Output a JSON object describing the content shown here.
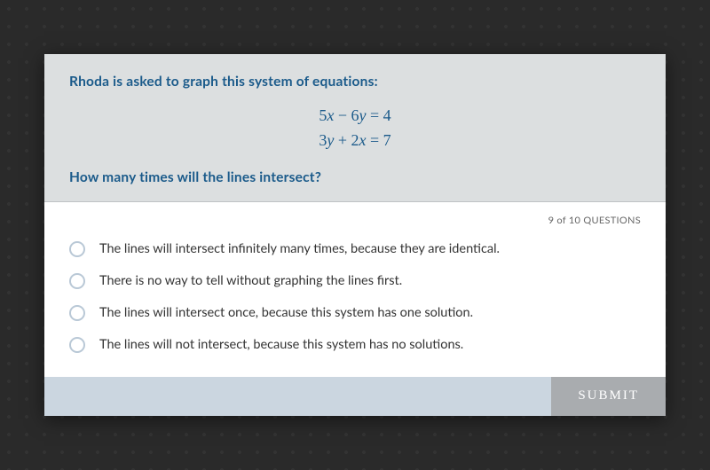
{
  "question": {
    "prompt_line1": "Rhoda is asked to graph this system of equations:",
    "equation1_html": "5<span class='var'>x</span> − 6<span class='var'>y</span> = 4",
    "equation2_html": "3<span class='var'>y</span> + 2<span class='var'>x</span> = 7",
    "prompt_line2": "How many times will the lines intersect?"
  },
  "progress": {
    "text": "9 of 10 QUESTIONS"
  },
  "options": [
    {
      "label": "The lines will intersect infinitely many times, because they are identical."
    },
    {
      "label": "There is no way to tell without graphing the lines first."
    },
    {
      "label": "The lines will intersect once, because this system has one solution."
    },
    {
      "label": "The lines will not intersect, because this system has no solutions."
    }
  ],
  "footer": {
    "submit_label": "SUBMIT"
  },
  "colors": {
    "card_bg": "#ffffff",
    "question_bg": "#dcdfe0",
    "question_text": "#1a5a8a",
    "option_text": "#333333",
    "radio_border": "#b9c8d6",
    "footer_spacer": "#cbd6e0",
    "submit_bg": "#a9acaf",
    "submit_text": "#ffffff",
    "page_bg": "#2a2a2a"
  }
}
